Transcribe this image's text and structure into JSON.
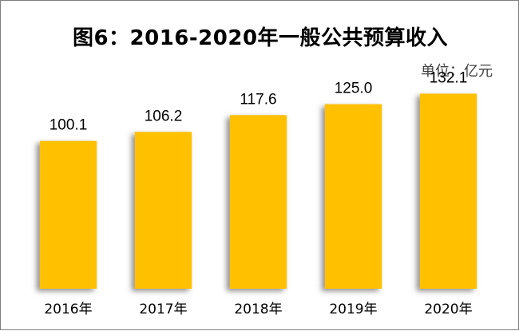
{
  "chart_data": {
    "type": "bar",
    "title": "图6：2016-2020年一般公共预算收入",
    "unit": "单位：亿元",
    "categories": [
      "2016年",
      "2017年",
      "2018年",
      "2019年",
      "2020年"
    ],
    "values": [
      100.1,
      106.2,
      117.6,
      125.0,
      132.1
    ],
    "value_labels": [
      "100.1",
      "106.2",
      "117.6",
      "125.0",
      "132.1"
    ],
    "ylim": [
      0,
      195
    ],
    "grid": false,
    "legend": "none",
    "bar_color": "#FFC000",
    "shadow_color": "#7f7f7f"
  }
}
